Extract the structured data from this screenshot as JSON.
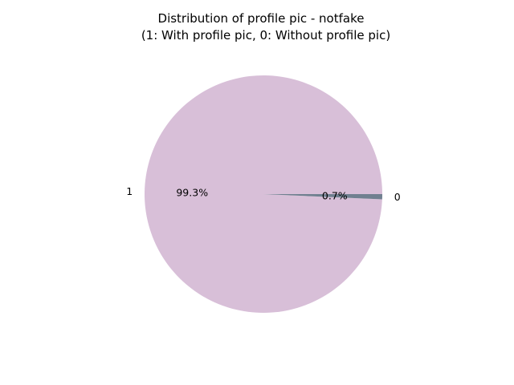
{
  "chart_data": {
    "type": "pie",
    "title": "Distribution of profile pic - notfake",
    "subtitle": "(1: With profile pic, 0: Without profile pic)",
    "slices": [
      {
        "label": "1",
        "value": 99.3,
        "pct_label": "99.3%",
        "color": "#d8bfd8"
      },
      {
        "label": "0",
        "value": 0.7,
        "pct_label": "0.7%",
        "color": "#708090"
      }
    ],
    "start_angle_deg": 0,
    "direction": "counterclockwise",
    "legend": "none"
  }
}
